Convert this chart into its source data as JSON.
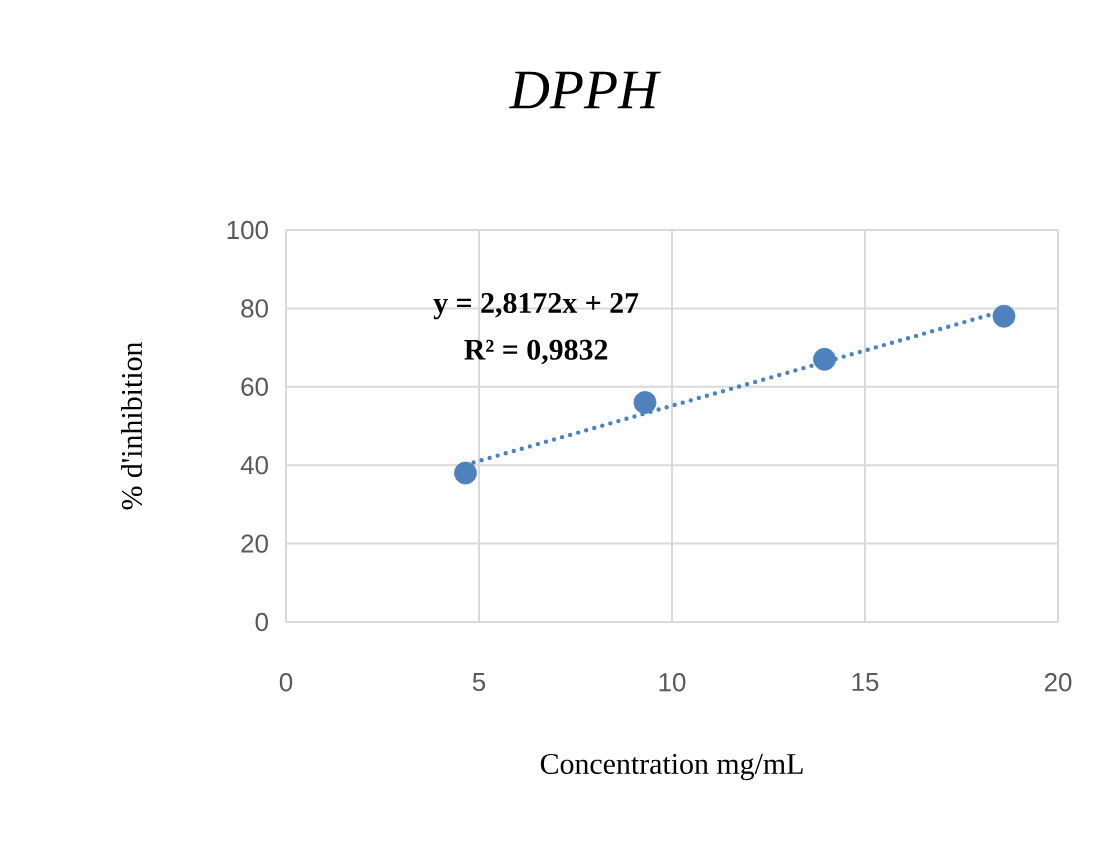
{
  "chart_data": {
    "type": "scatter",
    "title": "DPPH",
    "xlabel": "Concentration mg/mL",
    "ylabel": "% d'inhibition",
    "annotations": [
      "y = 2,8172x + 27",
      "R² = 0,9832"
    ],
    "xlim": [
      0,
      20
    ],
    "xticks": [
      0,
      5,
      10,
      15,
      20
    ],
    "ylim": [
      0,
      100
    ],
    "yticks": [
      0,
      20,
      40,
      60,
      80,
      100
    ],
    "grid": true,
    "series": [
      {
        "type": "scatter",
        "marker": "circle",
        "color": "#4f81bd",
        "x": [
          4.65,
          9.3,
          13.95,
          18.6
        ],
        "values": [
          38,
          56,
          67,
          78
        ]
      },
      {
        "type": "line",
        "color": "#4f81bd",
        "line_style": "dotted",
        "marker": "none",
        "x": [
          4.65,
          18.6
        ],
        "values": [
          40.1,
          79.4
        ]
      }
    ]
  }
}
